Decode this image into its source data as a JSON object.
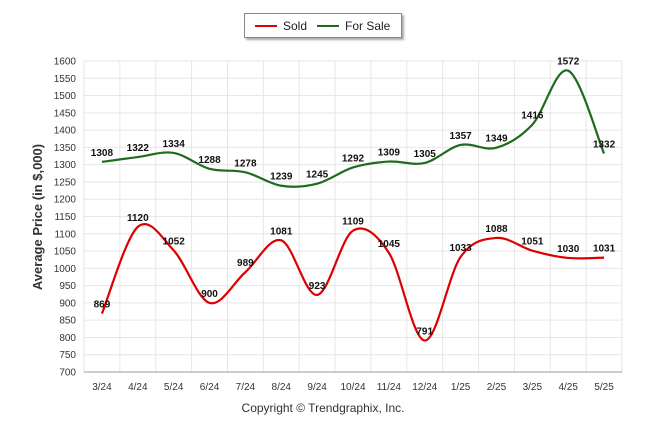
{
  "legend": {
    "items": [
      "Sold",
      "For Sale"
    ]
  },
  "copyright": "Copyright © Trendgraphix, Inc.",
  "colors": {
    "sold": "#dd0000",
    "for_sale": "#1e6b1e",
    "grid": "#e6e6e6"
  },
  "chart_data": {
    "type": "line",
    "ylabel": "Average Price (in $,000)",
    "xlabel": "",
    "ylim": [
      700,
      1600
    ],
    "yticks": [
      700,
      750,
      800,
      850,
      900,
      950,
      1000,
      1050,
      1100,
      1150,
      1200,
      1250,
      1300,
      1350,
      1400,
      1450,
      1500,
      1550,
      1600
    ],
    "grid": true,
    "legend_position": "top-center",
    "categories": [
      "3/24",
      "4/24",
      "5/24",
      "6/24",
      "7/24",
      "8/24",
      "9/24",
      "10/24",
      "11/24",
      "12/24",
      "1/25",
      "2/25",
      "3/25",
      "4/25",
      "5/25"
    ],
    "series": [
      {
        "name": "Sold",
        "values": [
          869,
          1120,
          1052,
          900,
          989,
          1081,
          923,
          1109,
          1045,
          791,
          1033,
          1088,
          1051,
          1030,
          1031
        ]
      },
      {
        "name": "For Sale",
        "values": [
          1308,
          1322,
          1334,
          1288,
          1278,
          1239,
          1245,
          1292,
          1309,
          1305,
          1357,
          1349,
          1416,
          1572,
          1332
        ]
      }
    ]
  }
}
